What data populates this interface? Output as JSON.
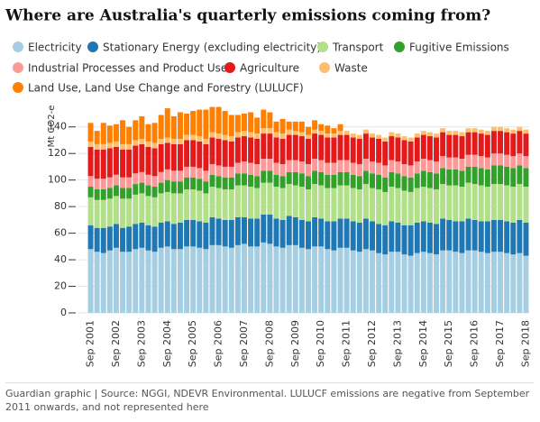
{
  "chart_data": {
    "type": "stacked_bar",
    "title": "Where are Australia's quarterly emissions coming from?",
    "y_label": "Mt CO2-e",
    "footer": "Guardian graphic | Source: NGGI, NDEVR Environmental. LULUCF emissions are negative from September 2011 onwards, and not represented here",
    "categories": [
      "Sep 2001",
      null,
      null,
      null,
      "Sep 2002",
      null,
      null,
      null,
      "Sep 2003",
      null,
      null,
      null,
      "Sep 2004",
      null,
      null,
      null,
      "Sep 2005",
      null,
      null,
      null,
      "Sep 2006",
      null,
      null,
      null,
      "Sep 2007",
      null,
      null,
      null,
      "Sep 2008",
      null,
      null,
      null,
      "Sep 2009",
      null,
      null,
      null,
      "Sep 2010",
      null,
      null,
      null,
      "Sep 2011",
      null,
      null,
      null,
      "Sep 2012",
      null,
      null,
      null,
      "Sep 2013",
      null,
      null,
      null,
      "Sep 2014",
      null,
      null,
      null,
      "Sep 2015",
      null,
      null,
      null,
      "Sep 2016",
      null,
      null,
      null,
      "Sep 2017",
      null,
      null,
      null,
      "Sep 2018"
    ],
    "ylim": [
      0,
      150
    ],
    "yticks": [
      0,
      20,
      40,
      60,
      80,
      100,
      120,
      140
    ],
    "grid": true,
    "series": [
      {
        "name": "Electricity",
        "color": "#a6cee3",
        "values": [
          48,
          46,
          45,
          47,
          49,
          46,
          46,
          48,
          49,
          47,
          46,
          49,
          50,
          48,
          48,
          50,
          50,
          49,
          48,
          51,
          51,
          50,
          49,
          51,
          52,
          50,
          50,
          53,
          52,
          50,
          49,
          51,
          51,
          49,
          48,
          50,
          50,
          48,
          47,
          49,
          49,
          47,
          46,
          48,
          47,
          45,
          44,
          46,
          46,
          44,
          43,
          45,
          46,
          45,
          44,
          47,
          47,
          46,
          45,
          47,
          47,
          46,
          45,
          46,
          46,
          45,
          44,
          45,
          43
        ]
      },
      {
        "name": "Stationary Energy (excluding electricity)",
        "color": "#1f78b4",
        "values": [
          18,
          18,
          19,
          18,
          18,
          18,
          19,
          19,
          19,
          19,
          19,
          19,
          19,
          19,
          20,
          20,
          20,
          20,
          20,
          21,
          20,
          20,
          21,
          21,
          20,
          21,
          21,
          21,
          22,
          21,
          21,
          22,
          21,
          21,
          21,
          22,
          21,
          21,
          22,
          22,
          22,
          22,
          22,
          23,
          22,
          22,
          22,
          23,
          22,
          22,
          23,
          23,
          23,
          23,
          23,
          24,
          23,
          23,
          24,
          24,
          23,
          23,
          24,
          24,
          24,
          24,
          24,
          25,
          25
        ]
      },
      {
        "name": "Transport",
        "color": "#b2df8a",
        "values": [
          21,
          21,
          21,
          21,
          21,
          22,
          21,
          22,
          22,
          22,
          22,
          22,
          22,
          23,
          22,
          23,
          23,
          23,
          22,
          23,
          23,
          23,
          23,
          24,
          24,
          24,
          23,
          24,
          24,
          24,
          24,
          24,
          24,
          25,
          24,
          25,
          25,
          25,
          25,
          25,
          25,
          25,
          25,
          26,
          25,
          26,
          25,
          26,
          26,
          26,
          25,
          26,
          26,
          26,
          26,
          26,
          26,
          27,
          26,
          27,
          27,
          27,
          26,
          27,
          27,
          27,
          27,
          27,
          27
        ]
      },
      {
        "name": "Fugitive Emissions",
        "color": "#33a02c",
        "values": [
          8,
          8,
          8,
          8,
          8,
          8,
          8,
          8,
          8,
          8,
          8,
          8,
          9,
          9,
          9,
          9,
          9,
          9,
          9,
          9,
          9,
          9,
          9,
          9,
          9,
          9,
          9,
          9,
          9,
          9,
          9,
          9,
          10,
          10,
          10,
          10,
          10,
          10,
          10,
          10,
          10,
          10,
          10,
          10,
          11,
          11,
          11,
          11,
          11,
          11,
          11,
          11,
          12,
          12,
          12,
          12,
          12,
          12,
          12,
          12,
          13,
          13,
          13,
          14,
          14,
          14,
          14,
          14,
          14
        ]
      },
      {
        "name": "Industrial Processes and Product Use",
        "color": "#fb9a99",
        "values": [
          8,
          8,
          8,
          8,
          8,
          8,
          8,
          8,
          8,
          8,
          8,
          8,
          8,
          8,
          8,
          8,
          8,
          8,
          8,
          8,
          8,
          8,
          8,
          8,
          9,
          9,
          9,
          9,
          9,
          9,
          9,
          9,
          9,
          9,
          9,
          9,
          9,
          9,
          9,
          9,
          9,
          9,
          9,
          9,
          9,
          9,
          9,
          9,
          9,
          9,
          9,
          9,
          9,
          9,
          9,
          9,
          9,
          9,
          9,
          9,
          9,
          9,
          9,
          9,
          9,
          9,
          9,
          9,
          9
        ]
      },
      {
        "name": "Agriculture",
        "color": "#e31a1c",
        "values": [
          22,
          22,
          22,
          22,
          21,
          21,
          21,
          21,
          21,
          21,
          21,
          21,
          20,
          20,
          20,
          20,
          20,
          20,
          20,
          20,
          20,
          20,
          19,
          19,
          19,
          19,
          19,
          19,
          19,
          19,
          19,
          19,
          19,
          19,
          19,
          19,
          19,
          19,
          19,
          19,
          19,
          19,
          19,
          19,
          18,
          18,
          18,
          18,
          18,
          18,
          18,
          18,
          18,
          18,
          18,
          18,
          17,
          17,
          17,
          17,
          17,
          17,
          17,
          17,
          17,
          17,
          17,
          17,
          17
        ]
      },
      {
        "name": "Waste",
        "color": "#fdbf6f",
        "values": [
          4,
          4,
          4,
          4,
          4,
          4,
          4,
          4,
          4,
          4,
          4,
          4,
          4,
          4,
          4,
          4,
          4,
          4,
          4,
          4,
          4,
          4,
          4,
          4,
          4,
          4,
          4,
          4,
          4,
          4,
          4,
          4,
          3,
          3,
          3,
          3,
          3,
          3,
          3,
          3,
          3,
          3,
          3,
          3,
          3,
          3,
          3,
          3,
          3,
          3,
          3,
          3,
          3,
          3,
          3,
          3,
          3,
          3,
          3,
          3,
          3,
          3,
          3,
          3,
          3,
          3,
          3,
          3,
          3
        ]
      },
      {
        "name": "Land Use, Land Use Change and Forestry (LULUCF)",
        "color": "#ff7f00",
        "values": [
          14,
          10,
          16,
          13,
          13,
          18,
          13,
          15,
          17,
          13,
          15,
          18,
          22,
          17,
          20,
          16,
          18,
          20,
          22,
          19,
          20,
          18,
          16,
          13,
          13,
          15,
          12,
          14,
          12,
          8,
          11,
          6,
          7,
          8,
          6,
          7,
          5,
          6,
          4,
          5,
          null,
          null,
          null,
          null,
          null,
          null,
          null,
          null,
          null,
          null,
          null,
          null,
          null,
          null,
          null,
          null,
          null,
          null,
          null,
          null,
          null,
          null,
          null,
          null,
          null,
          null,
          null,
          null,
          null
        ]
      }
    ]
  }
}
